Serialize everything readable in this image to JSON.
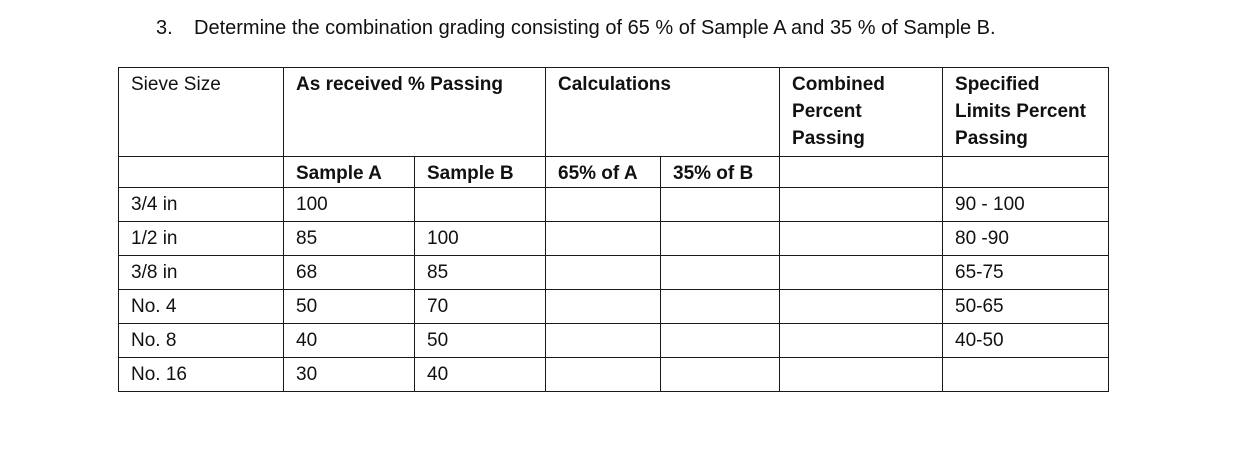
{
  "question": {
    "number": "3.",
    "text": "Determine the combination grading consisting of 65 % of Sample A and 35 % of Sample B."
  },
  "table": {
    "header": {
      "sieve_size": "Sieve Size",
      "as_received": "As received % Passing",
      "calculations": "Calculations",
      "combined": [
        "Combined",
        "Percent",
        "Passing"
      ],
      "specified": [
        "Specified",
        "Limits Percent",
        "Passing"
      ]
    },
    "subheader": {
      "sample_a": "Sample A",
      "sample_b": "Sample B",
      "pct_a": "65% of A",
      "pct_b": "35% of B"
    },
    "rows": [
      {
        "sieve": "3/4 in",
        "a": "100",
        "b": "",
        "calc_a": "",
        "calc_b": "",
        "combined": "",
        "limits": "90 - 100"
      },
      {
        "sieve": "1/2 in",
        "a": "85",
        "b": "100",
        "calc_a": "",
        "calc_b": "",
        "combined": "",
        "limits": "80 -90"
      },
      {
        "sieve": "3/8 in",
        "a": "68",
        "b": "85",
        "calc_a": "",
        "calc_b": "",
        "combined": "",
        "limits": "65-75"
      },
      {
        "sieve": "No. 4",
        "a": "50",
        "b": "70",
        "calc_a": "",
        "calc_b": "",
        "combined": "",
        "limits": "50-65"
      },
      {
        "sieve": "No. 8",
        "a": "40",
        "b": "50",
        "calc_a": "",
        "calc_b": "",
        "combined": "",
        "limits": "40-50"
      },
      {
        "sieve": "No. 16",
        "a": "30",
        "b": "40",
        "calc_a": "",
        "calc_b": "",
        "combined": "",
        "limits": ""
      }
    ]
  }
}
